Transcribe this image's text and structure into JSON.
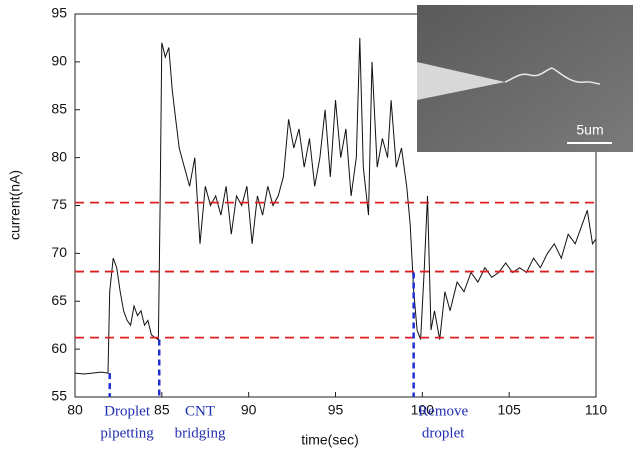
{
  "chart_data": {
    "type": "line",
    "x_label": "time(sec)",
    "y_label": "current(nA)",
    "x": [
      80,
      80.5,
      81,
      81.5,
      81.9,
      82.0,
      82.2,
      82.4,
      82.6,
      82.8,
      83.0,
      83.2,
      83.4,
      83.6,
      83.8,
      84.0,
      84.2,
      84.4,
      84.6,
      84.8,
      84.9,
      85.0,
      85.2,
      85.4,
      85.6,
      85.8,
      86.0,
      86.3,
      86.6,
      86.9,
      87.2,
      87.5,
      87.8,
      88.1,
      88.4,
      88.7,
      89.0,
      89.3,
      89.6,
      89.9,
      90.2,
      90.5,
      90.8,
      91.1,
      91.4,
      91.7,
      92.0,
      92.3,
      92.6,
      92.9,
      93.2,
      93.5,
      93.8,
      94.1,
      94.4,
      94.7,
      95.0,
      95.3,
      95.6,
      95.9,
      96.2,
      96.4,
      96.6,
      96.9,
      97.1,
      97.4,
      97.7,
      98.0,
      98.2,
      98.5,
      98.8,
      99.1,
      99.3,
      99.5,
      99.7,
      99.9,
      100.1,
      100.3,
      100.5,
      100.7,
      101.0,
      101.3,
      101.6,
      102.0,
      102.4,
      102.8,
      103.2,
      103.6,
      104.0,
      104.4,
      104.8,
      105.2,
      105.6,
      106.0,
      106.4,
      106.8,
      107.2,
      107.6,
      108.0,
      108.4,
      108.8,
      109.2,
      109.5,
      109.8,
      110.0
    ],
    "values": [
      57.5,
      57.4,
      57.5,
      57.6,
      57.5,
      66,
      69.5,
      68.5,
      66,
      64,
      63,
      62.5,
      64.5,
      63.5,
      64,
      62.5,
      63,
      61.5,
      61.2,
      61,
      75,
      92,
      90.5,
      91.5,
      87,
      84,
      81,
      79,
      77,
      80,
      71,
      77,
      75,
      76,
      74,
      77,
      72,
      76,
      75,
      77,
      71,
      76,
      74,
      77,
      75,
      76,
      78,
      84,
      81,
      83,
      79,
      82,
      77,
      80,
      85,
      78,
      86,
      80,
      83,
      76,
      80,
      92.5,
      79,
      74,
      90,
      79,
      82,
      80,
      86,
      79,
      81,
      77,
      73,
      66,
      62,
      61,
      68,
      76,
      62,
      64,
      61,
      66,
      64,
      67,
      66,
      68,
      67,
      68.5,
      67.5,
      68,
      69,
      68,
      68.5,
      68,
      69.5,
      68.5,
      70,
      71,
      69.5,
      72,
      71,
      73,
      74.5,
      71,
      71.5
    ],
    "color": "#111111",
    "xlim": [
      80,
      110
    ],
    "xticks": [
      80,
      85,
      90,
      95,
      100,
      105,
      110
    ],
    "ylim": [
      55,
      95
    ],
    "yticks": [
      55,
      60,
      65,
      70,
      75,
      80,
      85,
      90,
      95
    ],
    "hlines": {
      "color": "#e02020",
      "values": [
        75.3,
        68.1,
        61.2
      ]
    },
    "vlines": {
      "color": "#1f2fd0",
      "x": [
        82.0,
        84.85,
        99.5
      ],
      "top": [
        57.5,
        61,
        68
      ]
    },
    "annotations": [
      {
        "x": 83.0,
        "lines": [
          "Droplet",
          "pipetting"
        ]
      },
      {
        "x": 87.2,
        "lines": [
          "CNT",
          "bridging"
        ]
      },
      {
        "x": 101.2,
        "lines": [
          "Remove",
          "droplet"
        ]
      }
    ],
    "inset_scale_label": "5um"
  }
}
